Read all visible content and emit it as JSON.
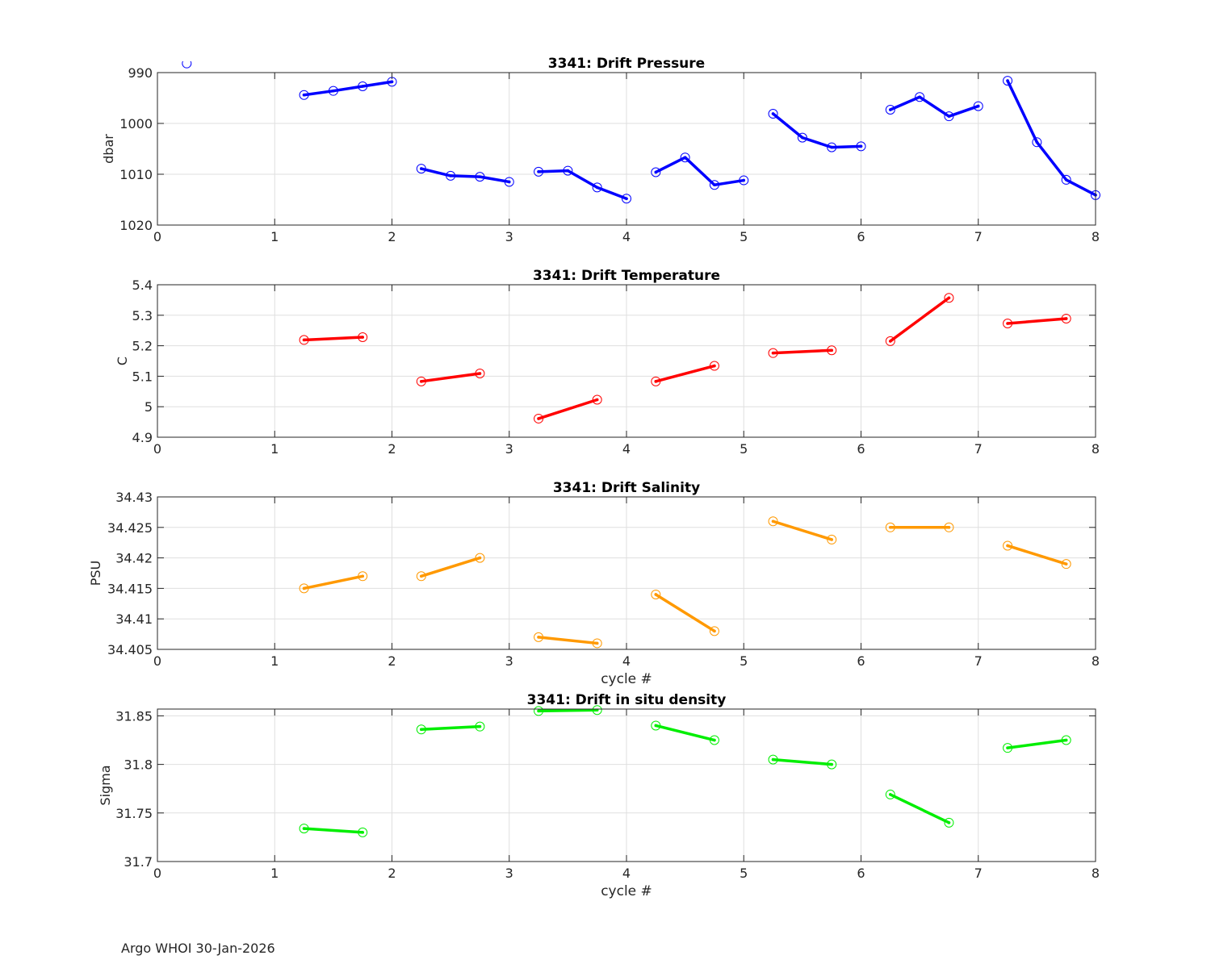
{
  "footer": "Argo WHOI 30-Jan-2026",
  "chart_data": [
    {
      "type": "line",
      "title": "3341: Drift Pressure",
      "xlabel": "",
      "ylabel": "dbar",
      "xlim": [
        0,
        8
      ],
      "ylim": [
        990,
        1020
      ],
      "y_reversed": true,
      "xticks": [
        "0",
        "1",
        "2",
        "3",
        "4",
        "5",
        "6",
        "7",
        "8"
      ],
      "yticks": [
        "990",
        "1000",
        "1010",
        "1020"
      ],
      "ytick_values": [
        990,
        1000,
        1010,
        1020
      ],
      "grid": true,
      "color": "#0000ff",
      "segments": [
        [
          [
            0.25,
            988.2
          ]
        ],
        [
          [
            1.25,
            994.4
          ],
          [
            1.5,
            993.6
          ],
          [
            1.75,
            992.7
          ],
          [
            2.0,
            991.8
          ]
        ],
        [
          [
            2.25,
            1008.9
          ],
          [
            2.5,
            1010.3
          ],
          [
            2.75,
            1010.5
          ],
          [
            3.0,
            1011.5
          ]
        ],
        [
          [
            3.25,
            1009.5
          ],
          [
            3.5,
            1009.3
          ],
          [
            3.75,
            1012.6
          ],
          [
            4.0,
            1014.8
          ]
        ],
        [
          [
            4.25,
            1009.6
          ],
          [
            4.5,
            1006.7
          ],
          [
            4.75,
            1012.1
          ],
          [
            5.0,
            1011.2
          ]
        ],
        [
          [
            5.25,
            998.1
          ],
          [
            5.5,
            1002.8
          ],
          [
            5.75,
            1004.7
          ],
          [
            6.0,
            1004.5
          ]
        ],
        [
          [
            6.25,
            997.3
          ],
          [
            6.5,
            994.8
          ],
          [
            6.75,
            998.6
          ],
          [
            7.0,
            996.6
          ]
        ],
        [
          [
            7.25,
            991.6
          ],
          [
            7.5,
            1003.7
          ],
          [
            7.75,
            1011.1
          ],
          [
            8.0,
            1014.1
          ]
        ]
      ]
    },
    {
      "type": "line",
      "title": "3341: Drift Temperature",
      "xlabel": "",
      "ylabel": "C",
      "xlim": [
        0,
        8
      ],
      "ylim": [
        4.9,
        5.4
      ],
      "y_reversed": false,
      "xticks": [
        "0",
        "1",
        "2",
        "3",
        "4",
        "5",
        "6",
        "7",
        "8"
      ],
      "yticks": [
        "4.9",
        "5",
        "5.1",
        "5.2",
        "5.3",
        "5.4"
      ],
      "ytick_values": [
        4.9,
        5.0,
        5.1,
        5.2,
        5.3,
        5.4
      ],
      "grid": true,
      "color": "#ff0000",
      "segments": [
        [
          [
            1.25,
            5.219
          ],
          [
            1.75,
            5.228
          ]
        ],
        [
          [
            2.25,
            5.083
          ],
          [
            2.75,
            5.109
          ]
        ],
        [
          [
            3.25,
            4.961
          ],
          [
            3.75,
            5.023
          ]
        ],
        [
          [
            4.25,
            5.083
          ],
          [
            4.75,
            5.134
          ]
        ],
        [
          [
            5.25,
            5.176
          ],
          [
            5.75,
            5.185
          ]
        ],
        [
          [
            6.25,
            5.215
          ],
          [
            6.75,
            5.357
          ]
        ],
        [
          [
            7.25,
            5.273
          ],
          [
            7.75,
            5.289
          ]
        ]
      ]
    },
    {
      "type": "line",
      "title": "3341: Drift Salinity",
      "xlabel": "cycle #",
      "ylabel": "PSU",
      "xlim": [
        0,
        8
      ],
      "ylim": [
        34.405,
        34.43
      ],
      "y_reversed": false,
      "xticks": [
        "0",
        "1",
        "2",
        "3",
        "4",
        "5",
        "6",
        "7",
        "8"
      ],
      "yticks": [
        "34.405",
        "34.41",
        "34.415",
        "34.42",
        "34.425",
        "34.43"
      ],
      "ytick_values": [
        34.405,
        34.41,
        34.415,
        34.42,
        34.425,
        34.43
      ],
      "grid": true,
      "color": "#ff9900",
      "segments": [
        [
          [
            1.25,
            34.415
          ],
          [
            1.75,
            34.417
          ]
        ],
        [
          [
            2.25,
            34.417
          ],
          [
            2.75,
            34.42
          ]
        ],
        [
          [
            3.25,
            34.407
          ],
          [
            3.75,
            34.406
          ]
        ],
        [
          [
            4.25,
            34.414
          ],
          [
            4.75,
            34.408
          ]
        ],
        [
          [
            5.25,
            34.426
          ],
          [
            5.75,
            34.423
          ]
        ],
        [
          [
            6.25,
            34.425
          ],
          [
            6.75,
            34.425
          ]
        ],
        [
          [
            7.25,
            34.422
          ],
          [
            7.75,
            34.419
          ]
        ]
      ]
    },
    {
      "type": "line",
      "title": "3341: Drift in situ density",
      "xlabel": "cycle #",
      "ylabel": "Sigma",
      "xlim": [
        0,
        8
      ],
      "ylim": [
        31.7,
        31.857
      ],
      "y_reversed": false,
      "xticks": [
        "0",
        "1",
        "2",
        "3",
        "4",
        "5",
        "6",
        "7",
        "8"
      ],
      "yticks": [
        "31.7",
        "31.75",
        "31.8",
        "31.85"
      ],
      "ytick_values": [
        31.7,
        31.75,
        31.8,
        31.85
      ],
      "grid": true,
      "color": "#00ee00",
      "segments": [
        [
          [
            1.25,
            31.734
          ],
          [
            1.75,
            31.73
          ]
        ],
        [
          [
            2.25,
            31.836
          ],
          [
            2.75,
            31.839
          ]
        ],
        [
          [
            3.25,
            31.855
          ],
          [
            3.75,
            31.856
          ]
        ],
        [
          [
            4.25,
            31.84
          ],
          [
            4.75,
            31.825
          ]
        ],
        [
          [
            5.25,
            31.805
          ],
          [
            5.75,
            31.8
          ]
        ],
        [
          [
            6.25,
            31.769
          ],
          [
            6.75,
            31.74
          ]
        ],
        [
          [
            7.25,
            31.817
          ],
          [
            7.75,
            31.825
          ]
        ]
      ]
    }
  ]
}
